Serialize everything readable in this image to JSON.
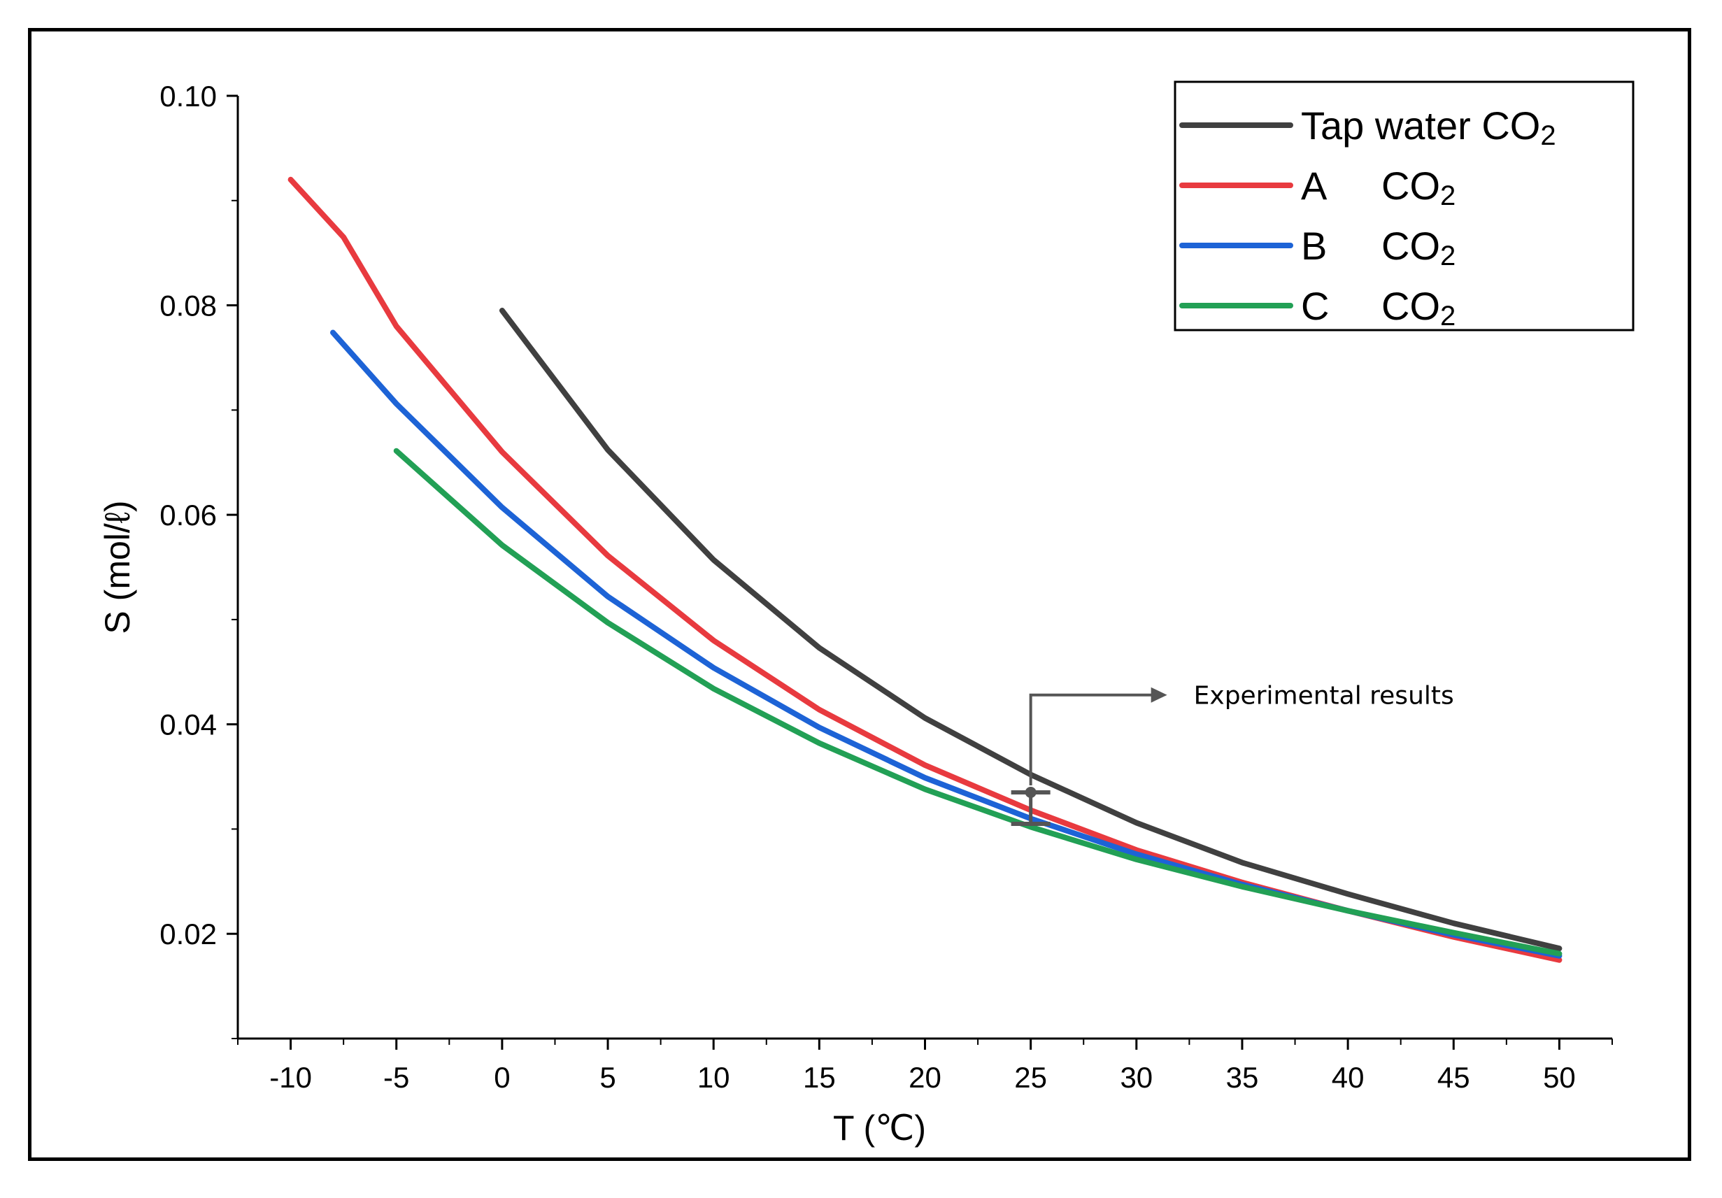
{
  "chart_data": {
    "type": "line",
    "xlabel": "T (℃)",
    "ylabel": "S (mol/ℓ)",
    "xlim": [
      -12.5,
      52.5
    ],
    "ylim": [
      0.01,
      0.1
    ],
    "x_ticks": [
      -10,
      -5,
      0,
      5,
      10,
      15,
      20,
      25,
      30,
      35,
      40,
      45,
      50
    ],
    "x_tick_labels": [
      "-10",
      "-5",
      "0",
      "5",
      "10",
      "15",
      "20",
      "25",
      "30",
      "35",
      "40",
      "45",
      "50"
    ],
    "y_ticks": [
      0.02,
      0.04,
      0.06,
      0.08,
      0.1
    ],
    "y_tick_labels": [
      "0.02",
      "0.04",
      "0.06",
      "0.08",
      "0.10"
    ],
    "grid": false,
    "legend_position": "top-right",
    "series": [
      {
        "name": "Tap water CO2",
        "name_main": "Tap water CO",
        "name_sub": "2",
        "color": "#404040",
        "x": [
          0,
          5,
          10,
          15,
          20,
          25,
          30,
          35,
          40,
          45,
          50
        ],
        "y": [
          0.0795,
          0.0662,
          0.0557,
          0.0473,
          0.0406,
          0.0352,
          0.0306,
          0.0268,
          0.0238,
          0.021,
          0.0186
        ]
      },
      {
        "name": "A CO2",
        "name_main": "A",
        "name_gas": "CO",
        "name_sub": "2",
        "color": "#e83a3f",
        "x": [
          -10,
          -7.5,
          -5,
          0,
          5,
          10,
          15,
          20,
          25,
          30,
          35,
          40,
          45,
          50
        ],
        "y": [
          0.092,
          0.0865,
          0.078,
          0.066,
          0.0561,
          0.048,
          0.0414,
          0.0361,
          0.0318,
          0.028,
          0.0249,
          0.0222,
          0.0197,
          0.0175
        ]
      },
      {
        "name": "B CO2",
        "name_main": "B",
        "name_gas": "CO",
        "name_sub": "2",
        "color": "#1d63d6",
        "x": [
          -8,
          -5,
          0,
          5,
          10,
          15,
          20,
          25,
          30,
          35,
          40,
          45,
          50
        ],
        "y": [
          0.0774,
          0.0706,
          0.0607,
          0.0522,
          0.0454,
          0.0397,
          0.0349,
          0.031,
          0.0276,
          0.0247,
          0.0222,
          0.0199,
          0.0179
        ]
      },
      {
        "name": "C CO2",
        "name_main": "C",
        "name_gas": "CO",
        "name_sub": "2",
        "color": "#22a055",
        "x": [
          -5,
          0,
          5,
          10,
          15,
          20,
          25,
          30,
          35,
          40,
          45,
          50
        ],
        "y": [
          0.0661,
          0.0571,
          0.0497,
          0.0434,
          0.0382,
          0.0338,
          0.0302,
          0.0271,
          0.0245,
          0.0222,
          0.0201,
          0.0181
        ]
      }
    ],
    "experimental": {
      "x": 25,
      "y": 0.0335,
      "y_low": 0.0305,
      "y_high": 0.0335,
      "label": "Experimental results"
    }
  }
}
